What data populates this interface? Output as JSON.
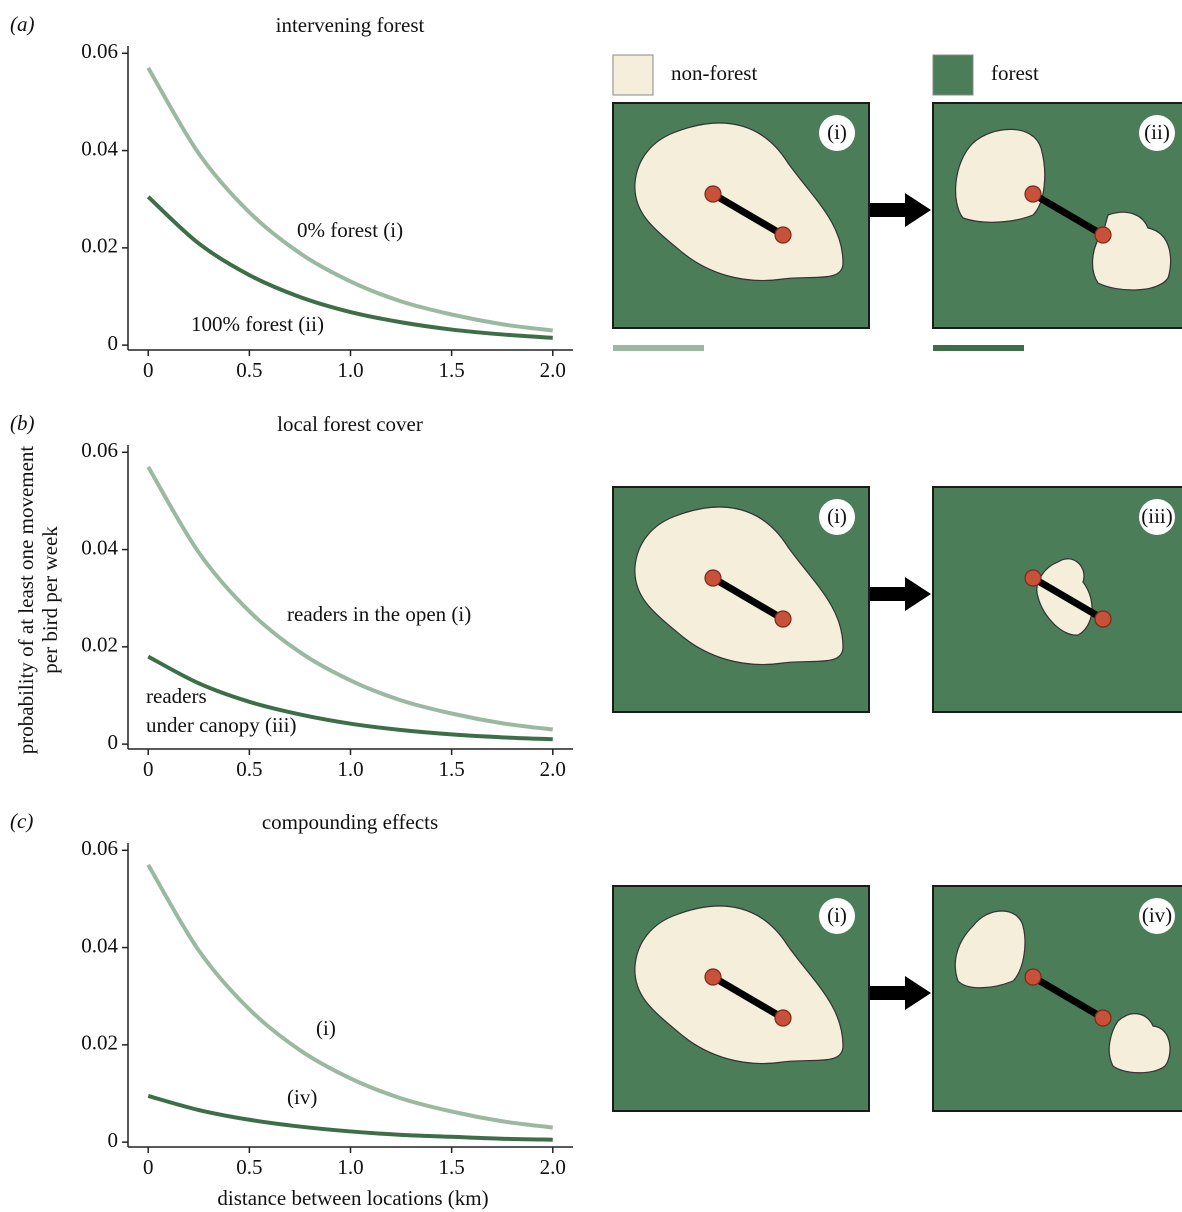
{
  "chart_data": [
    {
      "type": "line",
      "panel": "(a)",
      "title": "intervening forest",
      "x": [
        0,
        0.25,
        0.5,
        0.75,
        1,
        1.25,
        1.5,
        1.75,
        2
      ],
      "series": [
        {
          "label": [
            "0% forest (i)"
          ],
          "color": "#9bb9a0",
          "values": [
            0.057,
            0.0394,
            0.0273,
            0.0189,
            0.0131,
            0.009,
            0.0063,
            0.0043,
            0.003
          ]
        },
        {
          "label": [
            "100% forest (ii)"
          ],
          "color": "#3e6e48",
          "values": [
            0.0305,
            0.0209,
            0.0144,
            0.0099,
            0.0068,
            0.0047,
            0.0032,
            0.0022,
            0.0015
          ]
        }
      ],
      "xlim": [
        -0.1,
        2.1
      ],
      "xticks": [
        0,
        0.5,
        {
          "value": 1,
          "label": "1.0"
        },
        1.5,
        {
          "value": 2,
          "label": "2.0"
        }
      ],
      "ylim": [
        -0.001,
        0.0615
      ],
      "yticks": [
        0,
        0.02,
        0.04,
        0.06
      ]
    },
    {
      "type": "line",
      "panel": "(b)",
      "title": "local forest cover",
      "ylabel": [
        "probability of at least one movement",
        "per bird per week"
      ],
      "x": [
        0,
        0.25,
        0.5,
        0.75,
        1,
        1.25,
        1.5,
        1.75,
        2
      ],
      "series": [
        {
          "label": [
            "readers in the open (i)"
          ],
          "color": "#9bb9a0",
          "values": [
            0.057,
            0.0394,
            0.0273,
            0.0189,
            0.0131,
            0.009,
            0.0063,
            0.0043,
            0.003
          ]
        },
        {
          "label": [
            "readers",
            "under canopy (iii)"
          ],
          "color": "#3e6e48",
          "values": [
            0.018,
            0.0125,
            0.0087,
            0.0061,
            0.0042,
            0.0029,
            0.002,
            0.0014,
            0.001
          ]
        }
      ],
      "xlim": [
        -0.1,
        2.1
      ],
      "xticks": [
        0,
        0.5,
        {
          "value": 1,
          "label": "1.0"
        },
        1.5,
        {
          "value": 2,
          "label": "2.0"
        }
      ],
      "ylim": [
        -0.001,
        0.0615
      ],
      "yticks": [
        0,
        0.02,
        0.04,
        0.06
      ]
    },
    {
      "type": "line",
      "panel": "(c)",
      "title": "compounding effects",
      "xlabel": "distance between locations (km)",
      "x": [
        0,
        0.25,
        0.5,
        0.75,
        1,
        1.25,
        1.5,
        1.75,
        2
      ],
      "series": [
        {
          "label": [
            "(i)"
          ],
          "color": "#9bb9a0",
          "values": [
            0.057,
            0.0394,
            0.0273,
            0.0189,
            0.0131,
            0.009,
            0.0063,
            0.0043,
            0.003
          ]
        },
        {
          "label": [
            "(iv)"
          ],
          "color": "#3e6e48",
          "values": [
            0.0095,
            0.0066,
            0.0046,
            0.0032,
            0.0022,
            0.0015,
            0.0011,
            0.0007,
            0.0005
          ]
        }
      ],
      "xlim": [
        -0.1,
        2.1
      ],
      "xticks": [
        0,
        0.5,
        {
          "value": 1,
          "label": "1.0"
        },
        1.5,
        {
          "value": 2,
          "label": "2.0"
        }
      ],
      "ylim": [
        -0.001,
        0.0615
      ],
      "yticks": [
        0,
        0.02,
        0.04,
        0.06
      ]
    }
  ],
  "diagram": {
    "legend": [
      {
        "label": "non-forest",
        "color": "#f4eedb"
      },
      {
        "label": "forest",
        "color": "#4b7d58"
      }
    ],
    "panels": [
      [
        "(i)",
        "(ii)"
      ],
      [
        "(i)",
        "(iii)"
      ],
      [
        "(i)",
        "(iv)"
      ]
    ]
  }
}
